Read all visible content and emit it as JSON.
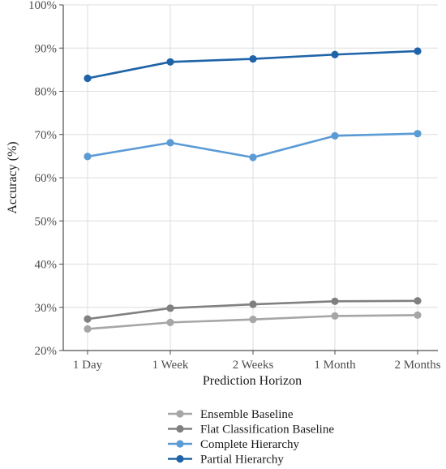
{
  "chart_data": {
    "type": "line",
    "title": "",
    "xlabel": "Prediction Horizon",
    "ylabel": "Accuracy (%)",
    "categories": [
      "1 Day",
      "1 Week",
      "2 Weeks",
      "1 Month",
      "2 Months"
    ],
    "ylim": [
      0.2,
      1.0
    ],
    "yticks": [
      0.2,
      0.3,
      0.4,
      0.5,
      0.6,
      0.7,
      0.8,
      0.9,
      1.0
    ],
    "ytick_labels": [
      "20%",
      "30%",
      "40%",
      "50%",
      "60%",
      "70%",
      "80%",
      "90%",
      "100%"
    ],
    "grid": true,
    "legend_position": "bottom",
    "series": [
      {
        "name": "Ensemble Baseline",
        "color": "#a6a6a6",
        "values": [
          0.25,
          0.265,
          0.272,
          0.28,
          0.282
        ]
      },
      {
        "name": "Flat Classification Baseline",
        "color": "#808080",
        "values": [
          0.273,
          0.298,
          0.307,
          0.314,
          0.315
        ]
      },
      {
        "name": "Complete Hierarchy",
        "color": "#5b9bd5",
        "values": [
          0.649,
          0.681,
          0.647,
          0.697,
          0.702
        ]
      },
      {
        "name": "Partial Hierarchy",
        "color": "#1f63a8",
        "values": [
          0.83,
          0.868,
          0.875,
          0.885,
          0.893
        ]
      }
    ]
  }
}
